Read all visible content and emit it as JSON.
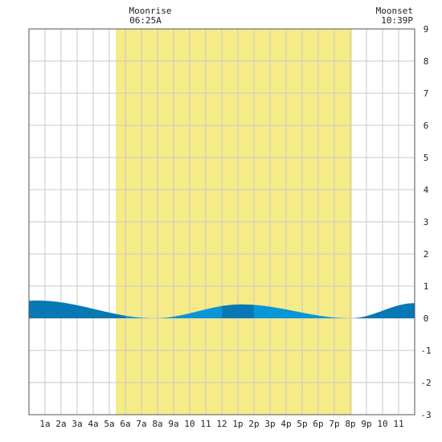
{
  "chart_data": {
    "type": "area",
    "moonrise": {
      "label": "Moonrise",
      "time": "06:25A",
      "hour": 6.42
    },
    "moonset": {
      "label": "Moonset",
      "time": "10:39P",
      "hour": 22.65
    },
    "daylight": {
      "start_hour": 5.4,
      "end_hour": 20.1
    },
    "x_tick_labels": [
      "1a",
      "2a",
      "3a",
      "4a",
      "5a",
      "6a",
      "7a",
      "8a",
      "9a",
      "10",
      "11",
      "12",
      "1p",
      "2p",
      "3p",
      "4p",
      "5p",
      "6p",
      "7p",
      "8p",
      "9p",
      "10",
      "11"
    ],
    "xlim": [
      0,
      24
    ],
    "ylim": [
      -3,
      9
    ],
    "y_ticks": [
      -3,
      -2,
      -1,
      0,
      1,
      2,
      3,
      4,
      5,
      6,
      7,
      8,
      9
    ],
    "grid": true,
    "tide_extremes": [
      {
        "hour": 0.5,
        "value": 0.55
      },
      {
        "hour": 7.8,
        "value": 0.0
      },
      {
        "hour": 13.2,
        "value": 0.43
      },
      {
        "hour": 20.0,
        "value": 0.0
      },
      {
        "hour": 24.0,
        "value": 0.47
      }
    ],
    "colors": {
      "daylight": "#f5eb88",
      "tide": "#0a96d6",
      "tide_dark": "#0878b5",
      "grid": "#c8c8c8",
      "border": "#555555"
    }
  }
}
